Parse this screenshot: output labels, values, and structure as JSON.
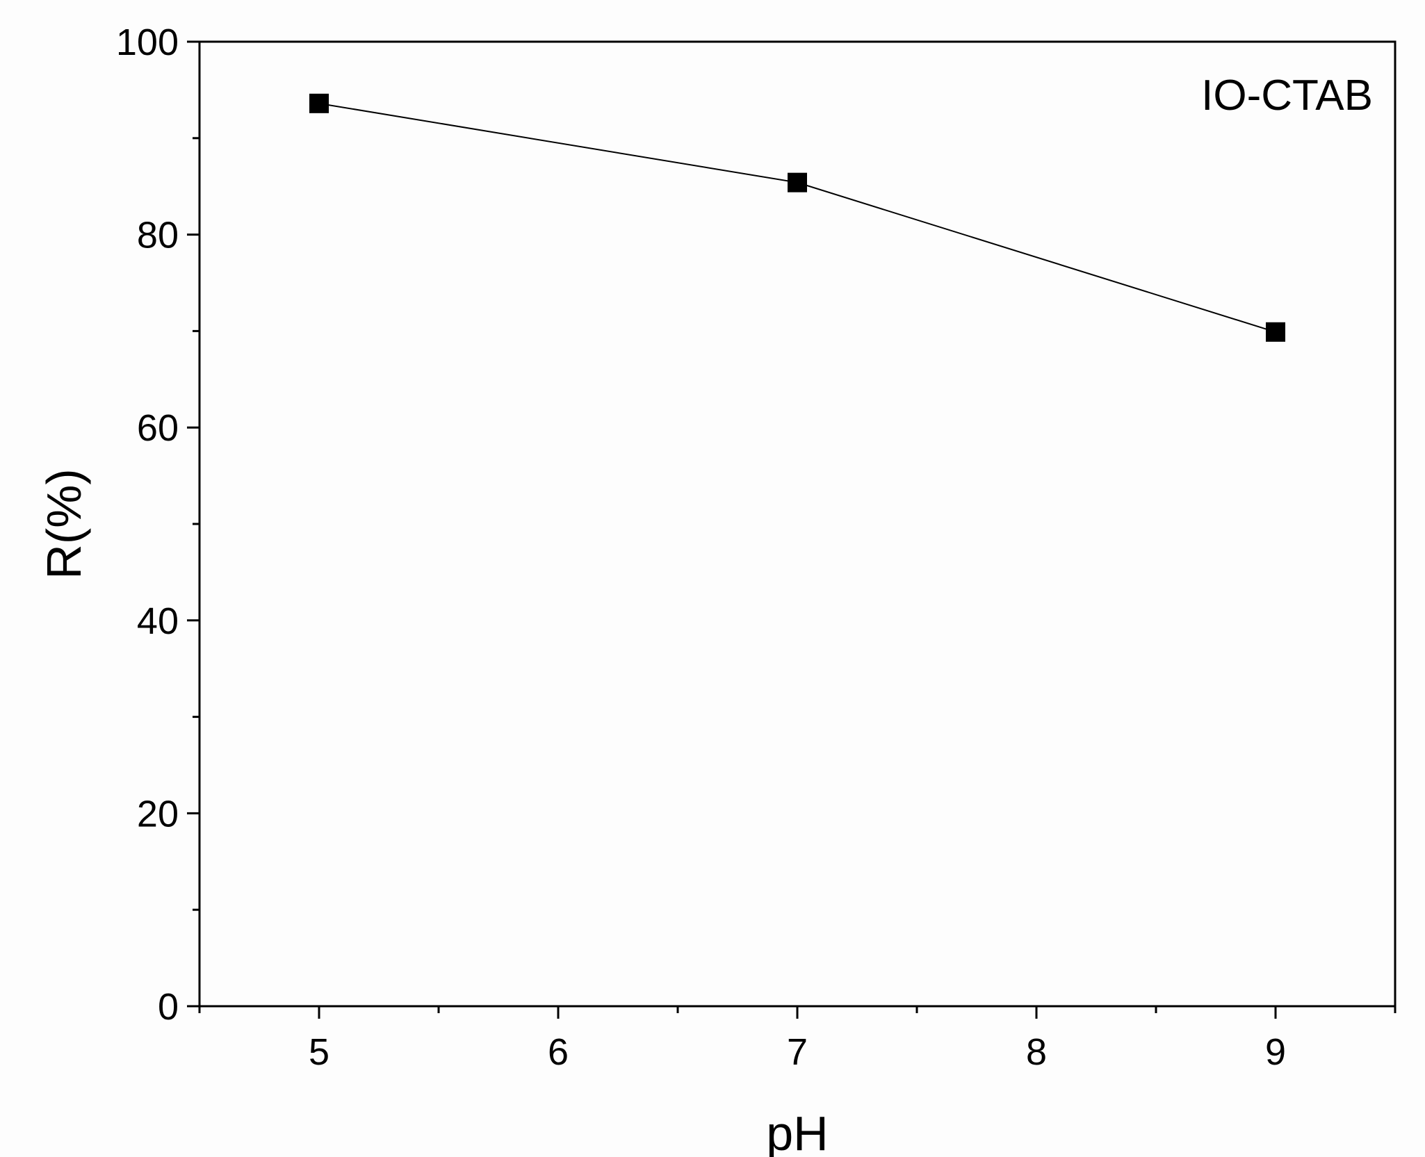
{
  "chart_data": {
    "type": "line",
    "title": "",
    "xlabel": "pH",
    "ylabel": "R(%)",
    "xlim": [
      4.5,
      9.5
    ],
    "ylim": [
      0,
      100
    ],
    "x_major_ticks": [
      5,
      6,
      7,
      8,
      9
    ],
    "x_minor_ticks": [
      4.5,
      5.5,
      6.5,
      7.5,
      8.5,
      9.5
    ],
    "y_major_ticks": [
      0,
      20,
      40,
      60,
      80,
      100
    ],
    "y_minor_ticks": [
      10,
      30,
      50,
      70,
      90
    ],
    "grid": false,
    "legend": "none",
    "marker": "square",
    "series": [
      {
        "x": [
          5,
          7,
          9
        ],
        "values": [
          93.6,
          85.4,
          69.9
        ],
        "color": "#000000"
      }
    ],
    "annotations": [
      {
        "text": "IO-CTAB",
        "position": "top-right"
      }
    ]
  }
}
